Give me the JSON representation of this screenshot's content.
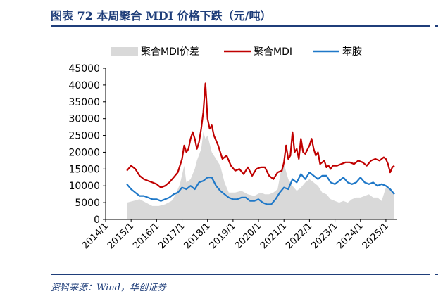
{
  "header": {
    "title": "图表 72   本周聚合 MDI 价格下跌（元/吨）"
  },
  "footer": {
    "source": "资料来源：Wind，华创证券"
  },
  "colors": {
    "accent": "#1f3e7a",
    "spread": "#d9d9d9",
    "mdi": "#c00000",
    "aniline": "#1f78c8"
  },
  "chart_data": {
    "type": "line",
    "title": "",
    "xlabel": "",
    "ylabel": "",
    "ylim": [
      0,
      45000
    ],
    "yticks": [
      0,
      5000,
      10000,
      15000,
      20000,
      25000,
      30000,
      35000,
      40000,
      45000
    ],
    "xlim": [
      "2014-01",
      "2025-06"
    ],
    "xticks": [
      "2014/1",
      "2015/1",
      "2016/1",
      "2017/1",
      "2018/1",
      "2019/1",
      "2020/1",
      "2021/1",
      "2022/1",
      "2023/1",
      "2024/1",
      "2025/1"
    ],
    "legend_position": "top",
    "grid": false,
    "series": [
      {
        "name": "聚合MDI价差",
        "style": "area",
        "x": [
          "2014-11",
          "2015-02",
          "2015-05",
          "2015-08",
          "2015-11",
          "2016-02",
          "2016-05",
          "2016-08",
          "2016-10",
          "2016-12",
          "2017-02",
          "2017-03",
          "2017-05",
          "2017-07",
          "2017-08",
          "2017-10",
          "2017-11",
          "2017-12",
          "2018-01",
          "2018-03",
          "2018-05",
          "2018-07",
          "2018-09",
          "2018-11",
          "2019-02",
          "2019-05",
          "2019-08",
          "2019-11",
          "2020-02",
          "2020-04",
          "2020-06",
          "2020-08",
          "2020-10",
          "2020-12",
          "2021-01",
          "2021-03",
          "2021-05",
          "2021-07",
          "2021-09",
          "2021-11",
          "2022-01",
          "2022-03",
          "2022-05",
          "2022-07",
          "2022-09",
          "2022-11",
          "2023-01",
          "2023-03",
          "2023-05",
          "2023-07",
          "2023-09",
          "2023-11",
          "2024-01",
          "2024-03",
          "2024-05",
          "2024-07",
          "2024-09",
          "2024-11",
          "2025-01",
          "2025-03",
          "2025-05"
        ],
        "values": [
          5000,
          5500,
          6000,
          5000,
          4000,
          4000,
          4500,
          5500,
          7500,
          10500,
          16000,
          11000,
          12000,
          15000,
          17500,
          21000,
          26000,
          24000,
          25000,
          20000,
          18000,
          16000,
          11000,
          8000,
          8000,
          8500,
          7500,
          7000,
          8000,
          7500,
          7500,
          8000,
          9000,
          16000,
          16500,
          12000,
          10000,
          8500,
          9500,
          11000,
          12000,
          11000,
          10000,
          8000,
          7500,
          6000,
          5500,
          5000,
          5500,
          5000,
          6000,
          6500,
          6500,
          7000,
          7500,
          6500,
          6500,
          5500,
          9500,
          9000,
          7500
        ]
      },
      {
        "name": "聚合MDI",
        "style": "line",
        "x": [
          "2014-11",
          "2015-01",
          "2015-03",
          "2015-05",
          "2015-07",
          "2015-09",
          "2015-11",
          "2016-01",
          "2016-03",
          "2016-05",
          "2016-07",
          "2016-09",
          "2016-11",
          "2017-01",
          "2017-02",
          "2017-03",
          "2017-04",
          "2017-05",
          "2017-06",
          "2017-07",
          "2017-08",
          "2017-09",
          "2017-10",
          "2017-11",
          "2017-12",
          "2018-01",
          "2018-02",
          "2018-03",
          "2018-04",
          "2018-06",
          "2018-08",
          "2018-10",
          "2018-12",
          "2019-02",
          "2019-04",
          "2019-06",
          "2019-08",
          "2019-10",
          "2019-12",
          "2020-02",
          "2020-04",
          "2020-06",
          "2020-08",
          "2020-10",
          "2020-12",
          "2021-01",
          "2021-02",
          "2021-03",
          "2021-04",
          "2021-05",
          "2021-06",
          "2021-07",
          "2021-08",
          "2021-09",
          "2021-10",
          "2021-11",
          "2022-01",
          "2022-02",
          "2022-03",
          "2022-04",
          "2022-05",
          "2022-06",
          "2022-07",
          "2022-08",
          "2022-09",
          "2022-10",
          "2022-11",
          "2022-12",
          "2023-02",
          "2023-04",
          "2023-06",
          "2023-08",
          "2023-10",
          "2023-12",
          "2024-02",
          "2024-04",
          "2024-06",
          "2024-08",
          "2024-10",
          "2024-12",
          "2025-01",
          "2025-02",
          "2025-03",
          "2025-04",
          "2025-05"
        ],
        "values": [
          14500,
          16000,
          15000,
          13000,
          12000,
          11500,
          11000,
          10500,
          9500,
          10000,
          11000,
          12500,
          14000,
          18000,
          22000,
          20000,
          21000,
          24000,
          26000,
          24000,
          21000,
          23000,
          27000,
          32000,
          40500,
          30000,
          27000,
          28000,
          25000,
          22000,
          18000,
          19000,
          16000,
          14500,
          15000,
          13500,
          15500,
          13000,
          15000,
          15500,
          15500,
          13000,
          12000,
          14000,
          14500,
          17000,
          22000,
          18000,
          19000,
          26000,
          20000,
          21000,
          18000,
          24000,
          20000,
          19500,
          22000,
          24000,
          21000,
          19000,
          20000,
          16500,
          17000,
          17500,
          15500,
          16000,
          15000,
          16000,
          16000,
          16500,
          17000,
          17000,
          16500,
          17500,
          17000,
          16000,
          17500,
          18000,
          17500,
          18500,
          18000,
          16500,
          14000,
          15500,
          16000
        ]
      },
      {
        "name": "苯胺",
        "style": "line",
        "x": [
          "2014-11",
          "2015-01",
          "2015-03",
          "2015-05",
          "2015-07",
          "2015-09",
          "2015-11",
          "2016-01",
          "2016-03",
          "2016-05",
          "2016-07",
          "2016-09",
          "2016-11",
          "2017-01",
          "2017-03",
          "2017-05",
          "2017-07",
          "2017-09",
          "2017-11",
          "2018-01",
          "2018-03",
          "2018-05",
          "2018-07",
          "2018-09",
          "2018-11",
          "2019-01",
          "2019-03",
          "2019-05",
          "2019-07",
          "2019-09",
          "2019-11",
          "2020-01",
          "2020-03",
          "2020-05",
          "2020-07",
          "2020-09",
          "2020-11",
          "2021-01",
          "2021-03",
          "2021-05",
          "2021-07",
          "2021-09",
          "2021-11",
          "2022-01",
          "2022-03",
          "2022-05",
          "2022-07",
          "2022-09",
          "2022-11",
          "2023-01",
          "2023-03",
          "2023-05",
          "2023-07",
          "2023-09",
          "2023-11",
          "2024-01",
          "2024-03",
          "2024-05",
          "2024-07",
          "2024-09",
          "2024-11",
          "2025-01",
          "2025-03",
          "2025-05"
        ],
        "values": [
          10500,
          9000,
          8000,
          7000,
          7000,
          6500,
          6000,
          6000,
          5500,
          6000,
          6500,
          7500,
          8000,
          9500,
          9000,
          10000,
          9000,
          11000,
          11500,
          12500,
          12500,
          10000,
          8500,
          7500,
          6500,
          6000,
          6000,
          6500,
          6500,
          5500,
          5500,
          6000,
          5000,
          4500,
          4500,
          6000,
          8000,
          9500,
          9000,
          12000,
          11000,
          13500,
          12000,
          14000,
          13000,
          12000,
          13000,
          13000,
          11000,
          10500,
          11500,
          12500,
          11000,
          10500,
          11000,
          12500,
          11000,
          10500,
          11000,
          10000,
          10500,
          10000,
          9000,
          7500
        ]
      }
    ]
  }
}
